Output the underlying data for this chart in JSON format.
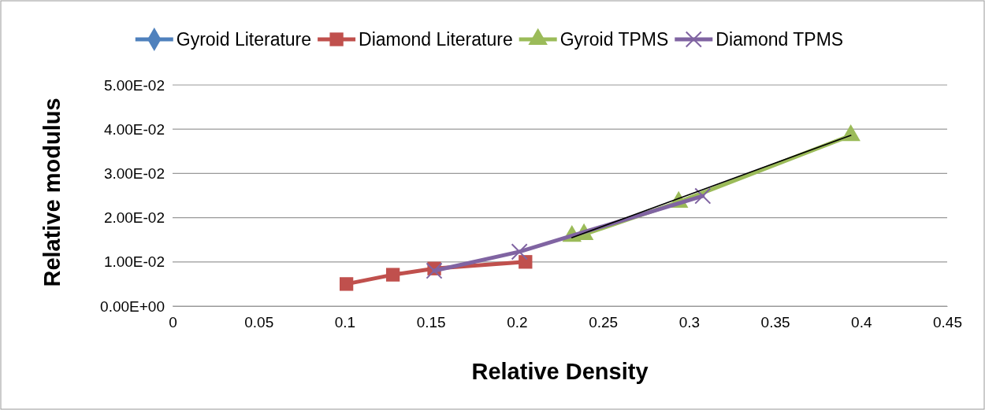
{
  "chart_data": {
    "type": "line",
    "xlabel": "Relative Density",
    "ylabel": "Relative modulus",
    "xlim": [
      0,
      0.45
    ],
    "ylim": [
      0,
      0.05
    ],
    "xticks": [
      0,
      0.05,
      0.1,
      0.15,
      0.2,
      0.25,
      0.3,
      0.35,
      0.4,
      0.45
    ],
    "yticks": [
      {
        "value": 0,
        "label": "0.00E+00"
      },
      {
        "value": 0.01,
        "label": "1.00E-02"
      },
      {
        "value": 0.02,
        "label": "2.00E-02"
      },
      {
        "value": 0.03,
        "label": "3.00E-02"
      },
      {
        "value": 0.04,
        "label": "4.00E-02"
      },
      {
        "value": 0.05,
        "label": "5.00E-02"
      }
    ],
    "grid": "y",
    "legend": "top",
    "series": [
      {
        "name": "Gyroid Literature",
        "color": "#4f81bd",
        "marker": "diamond"
      },
      {
        "name": "Diamond Literature",
        "color": "#c0504d",
        "marker": "square",
        "x": [
          0.101,
          0.128,
          0.152,
          0.205
        ],
        "values": [
          0.005,
          0.0071,
          0.0085,
          0.01
        ]
      },
      {
        "name": "Gyroid TPMS",
        "color": "#9bbb59",
        "marker": "triangle",
        "x": [
          0.232,
          0.239,
          0.294,
          0.394
        ],
        "values": [
          0.0158,
          0.0162,
          0.0235,
          0.0386
        ]
      },
      {
        "name": "Diamond TPMS",
        "color": "#8064a2",
        "marker": "cross",
        "x": [
          0.152,
          0.2015,
          0.308
        ],
        "values": [
          0.008,
          0.0123,
          0.0249
        ]
      },
      {
        "type": "line",
        "color": "#000000",
        "marker": "none",
        "x": [
          0.232,
          0.394
        ],
        "values": [
          0.0155,
          0.0386
        ]
      }
    ]
  }
}
